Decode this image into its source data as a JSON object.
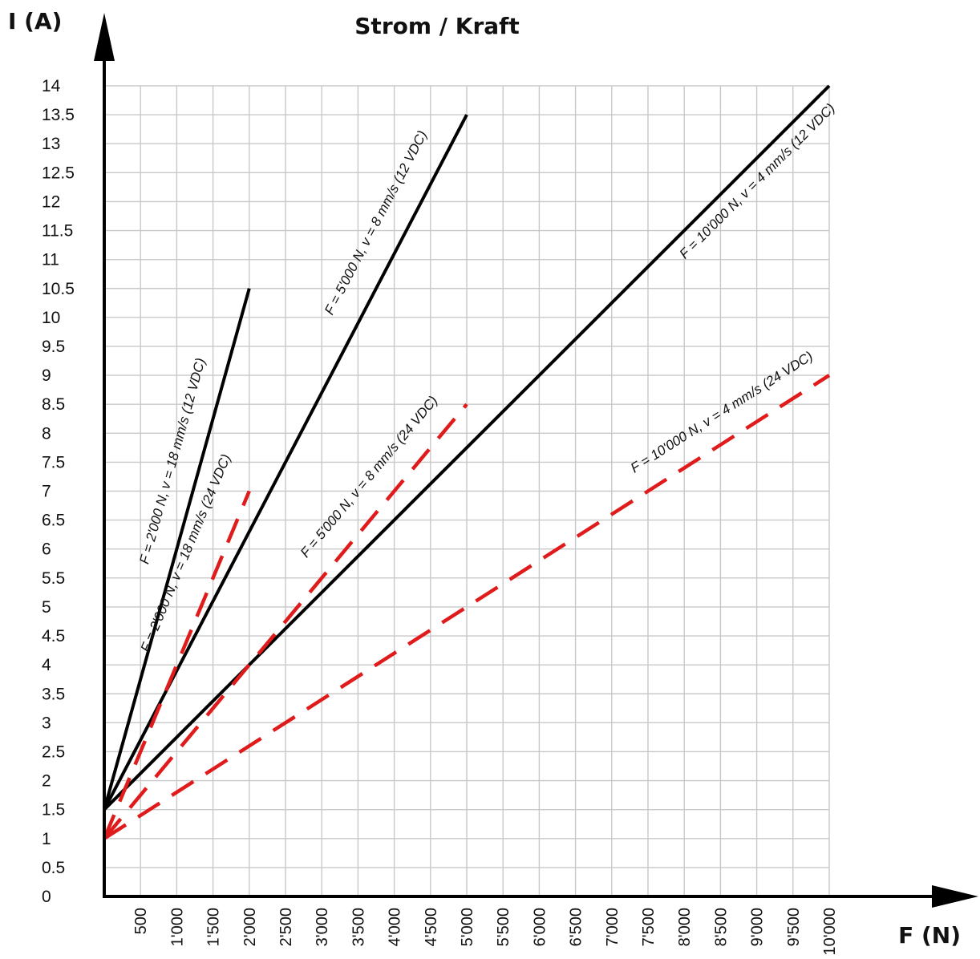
{
  "chart_data": {
    "type": "line",
    "title": "Strom / Kraft",
    "xlabel": "F (N)",
    "ylabel": "I (A)",
    "xlim": [
      0,
      10000
    ],
    "ylim": [
      0,
      14
    ],
    "grid": true,
    "x_ticks": [
      500,
      1000,
      1500,
      2000,
      2500,
      3000,
      3500,
      4000,
      4500,
      5000,
      5500,
      6000,
      6500,
      7000,
      7500,
      8000,
      8500,
      9000,
      9500,
      10000
    ],
    "x_tick_labels": [
      "500",
      "1'000",
      "1'500",
      "2'000",
      "2'500",
      "3'000",
      "3'500",
      "4'000",
      "4'500",
      "5'000",
      "5'500",
      "6'000",
      "6'500",
      "7'000",
      "7'500",
      "8'000",
      "8'500",
      "9'000",
      "9'500",
      "10'000"
    ],
    "y_ticks": [
      0,
      0.5,
      1,
      1.5,
      2,
      2.5,
      3,
      3.5,
      4,
      4.5,
      5,
      5.5,
      6,
      6.5,
      7,
      7.5,
      8,
      8.5,
      9,
      9.5,
      10,
      10.5,
      11,
      11.5,
      12,
      12.5,
      13,
      13.5,
      14
    ],
    "y_tick_labels": [
      "0",
      "0.5",
      "1",
      "1.5",
      "2",
      "2.5",
      "3",
      "3.5",
      "4",
      "4.5",
      "5",
      "5.5",
      "6",
      "6.5",
      "7",
      "7.5",
      "8",
      "8.5",
      "9",
      "9.5",
      "10",
      "10.5",
      "11",
      "11.5",
      "12",
      "12.5",
      "13",
      "13.5",
      "14"
    ],
    "series": [
      {
        "name": "F = 2'000 N, v = 18 mm/s (12 VDC)",
        "color": "#000000",
        "style": "solid",
        "x": [
          0,
          2000
        ],
        "y": [
          1.5,
          10.5
        ]
      },
      {
        "name": "F = 5'000 N, v = 8 mm/s (12 VDC)",
        "color": "#000000",
        "style": "solid",
        "x": [
          0,
          5000
        ],
        "y": [
          1.5,
          13.5
        ]
      },
      {
        "name": "F = 10'000 N, v = 4 mm/s (12 VDC)",
        "color": "#000000",
        "style": "solid",
        "x": [
          0,
          10000
        ],
        "y": [
          1.5,
          14
        ]
      },
      {
        "name": "F = 2'000 N, v = 18 mm/s (24 VDC)",
        "color": "#e01b1b",
        "style": "dashed",
        "x": [
          0,
          2000
        ],
        "y": [
          1,
          7
        ]
      },
      {
        "name": "F = 5'000 N, v = 8 mm/s (24 VDC)",
        "color": "#e01b1b",
        "style": "dashed",
        "x": [
          0,
          5000
        ],
        "y": [
          1,
          8.5
        ]
      },
      {
        "name": "F = 10'000 N, v = 4 mm/s (24 VDC)",
        "color": "#e01b1b",
        "style": "dashed",
        "x": [
          0,
          10000
        ],
        "y": [
          1,
          9
        ]
      }
    ],
    "annotations": [
      {
        "text": "F = 2'000 N, v = 18 mm/s (12 VDC)",
        "x": 1000,
        "y": 7.5
      },
      {
        "text": "F = 5'000 N, v = 8 mm/s (12 VDC)",
        "x": 3800,
        "y": 11.6
      },
      {
        "text": "F = 10'000 N, v = 4 mm/s (12 VDC)",
        "x": 9050,
        "y": 12.3
      },
      {
        "text": "F = 2'000 N, v = 18 mm/s (24 VDC)",
        "x": 1180,
        "y": 5.9
      },
      {
        "text": "F = 5'000 N, v = 8 mm/s (24 VDC)",
        "x": 3700,
        "y": 7.2
      },
      {
        "text": "F = 10'000 N, v = 4 mm/s (24 VDC)",
        "x": 8550,
        "y": 8.3
      }
    ]
  }
}
